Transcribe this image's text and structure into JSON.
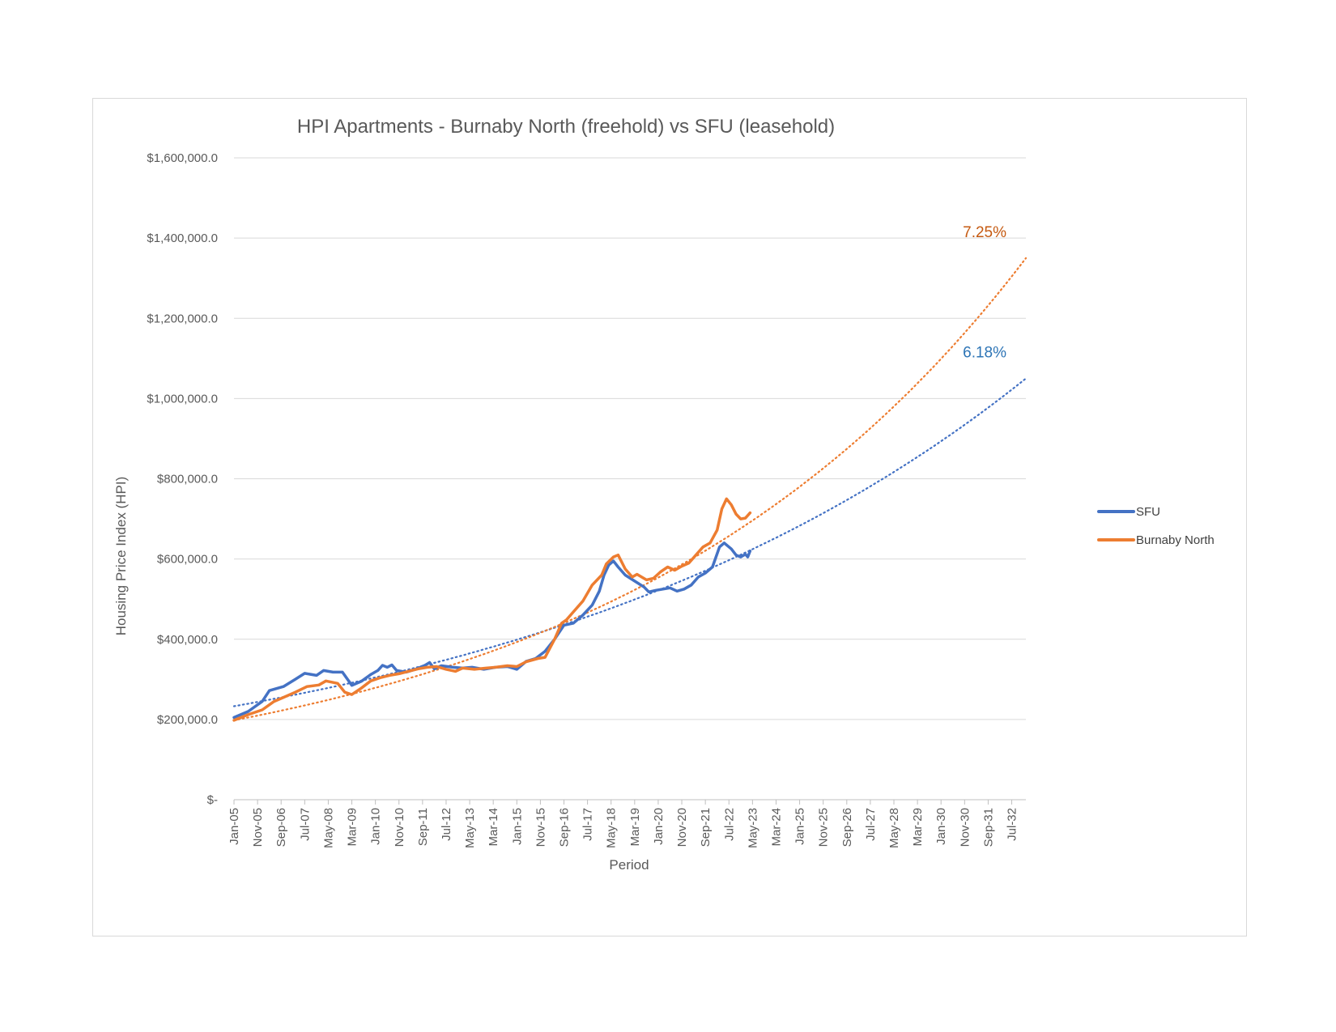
{
  "chart_data": {
    "type": "line",
    "title": "HPI Apartments - Burnaby North (freehold) vs SFU (leasehold)",
    "xlabel": "Period",
    "ylabel": "Housing Price Index (HPI)",
    "ylim": [
      0,
      1600000
    ],
    "y_ticks": [
      0,
      200000,
      400000,
      600000,
      800000,
      1000000,
      1200000,
      1400000,
      1600000
    ],
    "y_tick_labels": [
      "$-",
      "$200,000.0",
      "$400,000.0",
      "$600,000.0",
      "$800,000.0",
      "$1,000,000.0",
      "$1,200,000.0",
      "$1,400,000.0",
      "$1,600,000.0"
    ],
    "x_range": [
      "Jan-05",
      "Jan-33"
    ],
    "x_tick_labels": [
      "Jan-05",
      "Nov-05",
      "Sep-06",
      "Jul-07",
      "May-08",
      "Mar-09",
      "Jan-10",
      "Nov-10",
      "Sep-11",
      "Jul-12",
      "May-13",
      "Mar-14",
      "Jan-15",
      "Nov-15",
      "Sep-16",
      "Jul-17",
      "May-18",
      "Mar-19",
      "Jan-20",
      "Nov-20",
      "Sep-21",
      "Jul-22",
      "May-23",
      "Mar-24",
      "Jan-25",
      "Nov-25",
      "Sep-26",
      "Jul-27",
      "May-28",
      "Mar-29",
      "Jan-30",
      "Nov-30",
      "Sep-31",
      "Jul-32"
    ],
    "grid": true,
    "legend_position": "right",
    "series": [
      {
        "name": "SFU",
        "color": "#4472c4",
        "points": [
          [
            "Jan-05",
            205000
          ],
          [
            "Jul-05",
            220000
          ],
          [
            "Jan-06",
            245000
          ],
          [
            "Apr-06",
            272000
          ],
          [
            "Oct-06",
            282000
          ],
          [
            "Mar-07",
            300000
          ],
          [
            "Jul-07",
            315000
          ],
          [
            "Dec-07",
            310000
          ],
          [
            "Mar-08",
            322000
          ],
          [
            "Jul-08",
            318000
          ],
          [
            "Nov-08",
            318000
          ],
          [
            "Mar-09",
            285000
          ],
          [
            "Jul-09",
            295000
          ],
          [
            "Nov-09",
            312000
          ],
          [
            "Feb-10",
            322000
          ],
          [
            "Apr-10",
            335000
          ],
          [
            "Jun-10",
            330000
          ],
          [
            "Aug-10",
            336000
          ],
          [
            "Oct-10",
            322000
          ],
          [
            "Feb-11",
            318000
          ],
          [
            "Jun-11",
            325000
          ],
          [
            "Oct-11",
            335000
          ],
          [
            "Dec-11",
            342000
          ],
          [
            "Feb-12",
            326000
          ],
          [
            "May-12",
            334000
          ],
          [
            "Oct-12",
            330000
          ],
          [
            "Feb-13",
            328000
          ],
          [
            "Jun-13",
            330000
          ],
          [
            "Nov-13",
            325000
          ],
          [
            "Apr-14",
            330000
          ],
          [
            "Sep-14",
            332000
          ],
          [
            "Jan-15",
            325000
          ],
          [
            "May-15",
            345000
          ],
          [
            "Sep-15",
            352000
          ],
          [
            "Jan-16",
            370000
          ],
          [
            "May-16",
            400000
          ],
          [
            "Sep-16",
            435000
          ],
          [
            "Jan-17",
            440000
          ],
          [
            "May-17",
            460000
          ],
          [
            "Sep-17",
            485000
          ],
          [
            "Dec-17",
            520000
          ],
          [
            "Feb-18",
            560000
          ],
          [
            "Apr-18",
            585000
          ],
          [
            "Jun-18",
            595000
          ],
          [
            "Aug-18",
            580000
          ],
          [
            "Nov-18",
            560000
          ],
          [
            "Mar-19",
            545000
          ],
          [
            "Jul-19",
            530000
          ],
          [
            "Sep-19",
            518000
          ],
          [
            "Dec-19",
            522000
          ],
          [
            "Mar-20",
            525000
          ],
          [
            "Jun-20",
            528000
          ],
          [
            "Sep-20",
            520000
          ],
          [
            "Dec-20",
            525000
          ],
          [
            "Mar-21",
            535000
          ],
          [
            "Jun-21",
            555000
          ],
          [
            "Sep-21",
            565000
          ],
          [
            "Dec-21",
            580000
          ],
          [
            "Mar-22",
            630000
          ],
          [
            "May-22",
            640000
          ],
          [
            "Aug-22",
            625000
          ],
          [
            "Oct-22",
            610000
          ],
          [
            "Dec-22",
            605000
          ],
          [
            "Feb-23",
            612000
          ],
          [
            "Mar-23",
            605000
          ],
          [
            "Apr-23",
            620000
          ]
        ]
      },
      {
        "name": "Burnaby North",
        "color": "#ed7d31",
        "points": [
          [
            "Jan-05",
            198000
          ],
          [
            "Jul-05",
            212000
          ],
          [
            "Jan-06",
            224000
          ],
          [
            "Jun-06",
            245000
          ],
          [
            "Oct-06",
            255000
          ],
          [
            "Mar-07",
            268000
          ],
          [
            "Aug-07",
            282000
          ],
          [
            "Jan-08",
            286000
          ],
          [
            "Apr-08",
            296000
          ],
          [
            "Sep-08",
            290000
          ],
          [
            "Dec-08",
            268000
          ],
          [
            "Mar-09",
            262000
          ],
          [
            "Jul-09",
            278000
          ],
          [
            "Nov-09",
            296000
          ],
          [
            "Mar-10",
            304000
          ],
          [
            "Jul-10",
            310000
          ],
          [
            "Nov-10",
            314000
          ],
          [
            "Mar-11",
            320000
          ],
          [
            "Jul-11",
            326000
          ],
          [
            "Nov-11",
            330000
          ],
          [
            "Mar-12",
            332000
          ],
          [
            "Jul-12",
            325000
          ],
          [
            "Nov-12",
            320000
          ],
          [
            "Feb-13",
            328000
          ],
          [
            "Jul-13",
            325000
          ],
          [
            "Dec-13",
            328000
          ],
          [
            "Apr-14",
            330000
          ],
          [
            "Sep-14",
            334000
          ],
          [
            "Jan-15",
            332000
          ],
          [
            "May-15",
            344000
          ],
          [
            "Oct-15",
            352000
          ],
          [
            "Jan-16",
            355000
          ],
          [
            "May-16",
            400000
          ],
          [
            "Aug-16",
            440000
          ],
          [
            "Oct-16",
            448000
          ],
          [
            "Jan-17",
            468000
          ],
          [
            "May-17",
            495000
          ],
          [
            "Sep-17",
            535000
          ],
          [
            "Jan-18",
            560000
          ],
          [
            "Mar-18",
            588000
          ],
          [
            "Jun-18",
            605000
          ],
          [
            "Aug-18",
            610000
          ],
          [
            "Nov-18",
            575000
          ],
          [
            "Feb-19",
            555000
          ],
          [
            "Apr-19",
            562000
          ],
          [
            "Aug-19",
            548000
          ],
          [
            "Nov-19",
            552000
          ],
          [
            "Feb-20",
            568000
          ],
          [
            "May-20",
            580000
          ],
          [
            "Aug-20",
            572000
          ],
          [
            "Nov-20",
            582000
          ],
          [
            "Feb-21",
            590000
          ],
          [
            "May-21",
            610000
          ],
          [
            "Aug-21",
            630000
          ],
          [
            "Nov-21",
            640000
          ],
          [
            "Feb-22",
            672000
          ],
          [
            "Apr-22",
            725000
          ],
          [
            "Jun-22",
            750000
          ],
          [
            "Aug-22",
            735000
          ],
          [
            "Oct-22",
            712000
          ],
          [
            "Dec-22",
            700000
          ],
          [
            "Feb-23",
            702000
          ],
          [
            "Apr-23",
            715000
          ]
        ]
      }
    ],
    "trendlines": [
      {
        "series": "SFU",
        "type": "exponential",
        "color": "#4472c4",
        "label": "6.18%",
        "points": [
          [
            "Jan-05",
            233000
          ],
          [
            "Jan-33",
            1050000
          ]
        ]
      },
      {
        "series": "Burnaby North",
        "type": "exponential",
        "color": "#ed7d31",
        "label": "7.25%",
        "points": [
          [
            "Jan-05",
            198000
          ],
          [
            "Jan-33",
            1350000
          ]
        ]
      }
    ]
  }
}
